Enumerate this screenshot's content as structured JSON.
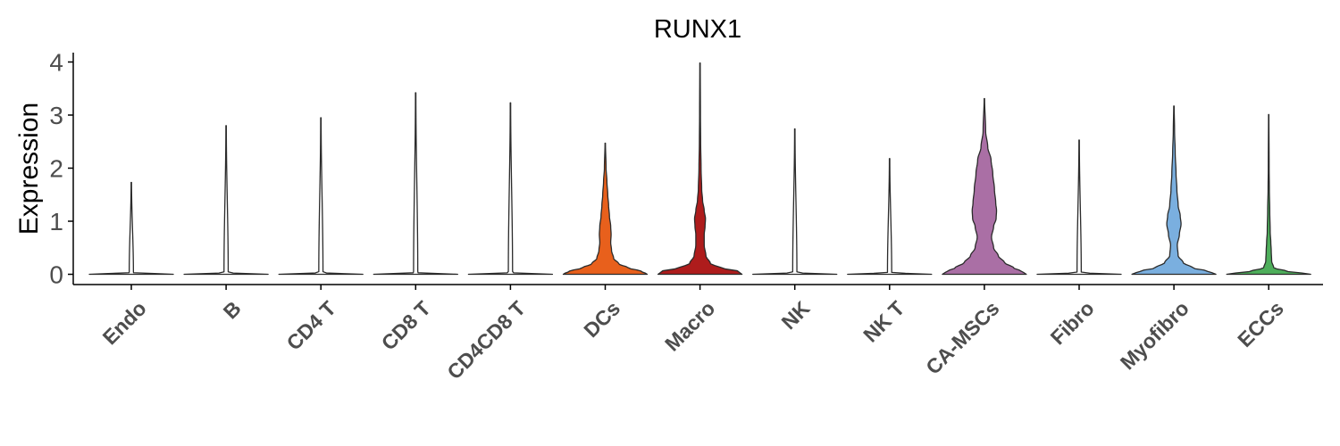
{
  "chart_data": {
    "type": "violin",
    "title": "RUNX1",
    "xlabel": "",
    "ylabel": "Expression",
    "ylim": [
      -0.2,
      4.15
    ],
    "yticks": [
      0,
      1,
      2,
      3,
      4
    ],
    "grid": false,
    "legend": "none",
    "categories": [
      "Endo",
      "B",
      "CD4 T",
      "CD8 T",
      "CD4CD8 T",
      "DCs",
      "Macro",
      "NK",
      "NK T",
      "CA-MSCs",
      "Fibro",
      "Myofibro",
      "ECCs"
    ],
    "series": [
      {
        "category": "Endo",
        "color": "#ffffff",
        "max": 1.73,
        "profile": [
          [
            0,
            1.0
          ],
          [
            0.03,
            0.05
          ],
          [
            1.73,
            0.005
          ]
        ]
      },
      {
        "category": "B",
        "color": "#ffffff",
        "max": 2.8,
        "profile": [
          [
            0,
            1.0
          ],
          [
            0.03,
            0.05
          ],
          [
            2.8,
            0.005
          ]
        ]
      },
      {
        "category": "CD4 T",
        "color": "#ffffff",
        "max": 2.95,
        "profile": [
          [
            0,
            1.0
          ],
          [
            0.03,
            0.05
          ],
          [
            2.95,
            0.005
          ]
        ]
      },
      {
        "category": "CD8 T",
        "color": "#ffffff",
        "max": 3.42,
        "profile": [
          [
            0,
            1.0
          ],
          [
            0.03,
            0.05
          ],
          [
            3.42,
            0.005
          ]
        ]
      },
      {
        "category": "CD4CD8 T",
        "color": "#ffffff",
        "max": 3.23,
        "profile": [
          [
            0,
            1.0
          ],
          [
            0.03,
            0.05
          ],
          [
            3.23,
            0.005
          ]
        ]
      },
      {
        "category": "DCs",
        "color": "#e8601c",
        "max": 2.47,
        "profile": [
          [
            0,
            1.0
          ],
          [
            0.06,
            0.85
          ],
          [
            0.12,
            0.55
          ],
          [
            0.2,
            0.32
          ],
          [
            0.3,
            0.2
          ],
          [
            0.45,
            0.15
          ],
          [
            0.6,
            0.13
          ],
          [
            0.75,
            0.14
          ],
          [
            0.9,
            0.13
          ],
          [
            1.1,
            0.1
          ],
          [
            1.3,
            0.08
          ],
          [
            1.5,
            0.06
          ],
          [
            1.75,
            0.04
          ],
          [
            2.0,
            0.02
          ],
          [
            2.47,
            0.005
          ]
        ]
      },
      {
        "category": "Macro",
        "color": "#ae1c1c",
        "max": 3.98,
        "profile": [
          [
            0,
            1.0
          ],
          [
            0.06,
            0.9
          ],
          [
            0.12,
            0.5
          ],
          [
            0.2,
            0.25
          ],
          [
            0.35,
            0.14
          ],
          [
            0.55,
            0.1
          ],
          [
            0.75,
            0.1
          ],
          [
            0.9,
            0.12
          ],
          [
            1.05,
            0.13
          ],
          [
            1.2,
            0.1
          ],
          [
            1.4,
            0.06
          ],
          [
            1.6,
            0.04
          ],
          [
            2.0,
            0.025
          ],
          [
            2.5,
            0.015
          ],
          [
            3.0,
            0.01
          ],
          [
            3.98,
            0.005
          ]
        ]
      },
      {
        "category": "NK",
        "color": "#ffffff",
        "max": 2.74,
        "profile": [
          [
            0,
            1.0
          ],
          [
            0.03,
            0.05
          ],
          [
            2.74,
            0.005
          ]
        ]
      },
      {
        "category": "NK T",
        "color": "#ffffff",
        "max": 2.18,
        "profile": [
          [
            0,
            1.0
          ],
          [
            0.03,
            0.05
          ],
          [
            2.18,
            0.005
          ]
        ]
      },
      {
        "category": "CA-MSCs",
        "color": "#aa6fa5",
        "max": 3.31,
        "profile": [
          [
            0,
            1.0
          ],
          [
            0.06,
            0.88
          ],
          [
            0.12,
            0.7
          ],
          [
            0.22,
            0.48
          ],
          [
            0.35,
            0.33
          ],
          [
            0.5,
            0.22
          ],
          [
            0.7,
            0.17
          ],
          [
            0.9,
            0.22
          ],
          [
            1.05,
            0.28
          ],
          [
            1.2,
            0.29
          ],
          [
            1.35,
            0.27
          ],
          [
            1.6,
            0.24
          ],
          [
            1.9,
            0.2
          ],
          [
            2.15,
            0.16
          ],
          [
            2.4,
            0.08
          ],
          [
            2.7,
            0.03
          ],
          [
            3.31,
            0.005
          ]
        ]
      },
      {
        "category": "Fibro",
        "color": "#ffffff",
        "max": 2.53,
        "profile": [
          [
            0,
            1.0
          ],
          [
            0.03,
            0.05
          ],
          [
            2.53,
            0.005
          ]
        ]
      },
      {
        "category": "Myofibro",
        "color": "#7aafdf",
        "max": 3.17,
        "profile": [
          [
            0,
            1.0
          ],
          [
            0.06,
            0.8
          ],
          [
            0.12,
            0.45
          ],
          [
            0.22,
            0.22
          ],
          [
            0.35,
            0.1
          ],
          [
            0.55,
            0.08
          ],
          [
            0.75,
            0.13
          ],
          [
            0.95,
            0.17
          ],
          [
            1.1,
            0.15
          ],
          [
            1.3,
            0.1
          ],
          [
            1.6,
            0.07
          ],
          [
            1.9,
            0.05
          ],
          [
            2.3,
            0.03
          ],
          [
            2.7,
            0.015
          ],
          [
            3.17,
            0.005
          ]
        ]
      },
      {
        "category": "ECCs",
        "color": "#4eae5b",
        "max": 3.01,
        "profile": [
          [
            0,
            1.0
          ],
          [
            0.06,
            0.42
          ],
          [
            0.12,
            0.12
          ],
          [
            0.25,
            0.07
          ],
          [
            0.45,
            0.06
          ],
          [
            0.6,
            0.05
          ],
          [
            0.8,
            0.035
          ],
          [
            1.2,
            0.025
          ],
          [
            1.6,
            0.015
          ],
          [
            2.0,
            0.01
          ],
          [
            3.01,
            0.004
          ]
        ]
      }
    ]
  }
}
